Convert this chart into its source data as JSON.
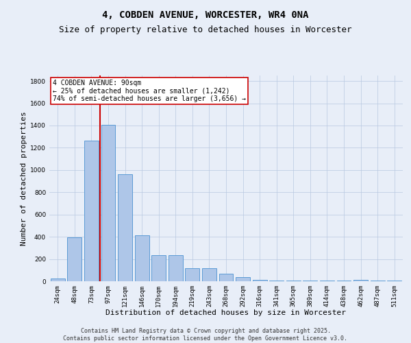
{
  "title": "4, COBDEN AVENUE, WORCESTER, WR4 0NA",
  "subtitle": "Size of property relative to detached houses in Worcester",
  "xlabel": "Distribution of detached houses by size in Worcester",
  "ylabel": "Number of detached properties",
  "categories": [
    "24sqm",
    "48sqm",
    "73sqm",
    "97sqm",
    "121sqm",
    "146sqm",
    "170sqm",
    "194sqm",
    "219sqm",
    "243sqm",
    "268sqm",
    "292sqm",
    "316sqm",
    "341sqm",
    "365sqm",
    "389sqm",
    "414sqm",
    "438sqm",
    "462sqm",
    "487sqm",
    "511sqm"
  ],
  "values": [
    25,
    395,
    1265,
    1405,
    960,
    415,
    235,
    235,
    120,
    120,
    65,
    40,
    15,
    5,
    5,
    5,
    5,
    5,
    15,
    5,
    5
  ],
  "bar_color": "#aec6e8",
  "bar_edge_color": "#5b9bd5",
  "vline_x_index": 2.5,
  "vline_color": "#cc0000",
  "annotation_text": "4 COBDEN AVENUE: 90sqm\n← 25% of detached houses are smaller (1,242)\n74% of semi-detached houses are larger (3,656) →",
  "annotation_box_color": "#ffffff",
  "annotation_box_edge_color": "#cc0000",
  "ylim": [
    0,
    1850
  ],
  "bg_color": "#e8eef8",
  "footer_line1": "Contains HM Land Registry data © Crown copyright and database right 2025.",
  "footer_line2": "Contains public sector information licensed under the Open Government Licence v3.0.",
  "title_fontsize": 10,
  "subtitle_fontsize": 9,
  "xlabel_fontsize": 8,
  "ylabel_fontsize": 8,
  "tick_fontsize": 6.5,
  "annotation_fontsize": 7,
  "footer_fontsize": 6
}
